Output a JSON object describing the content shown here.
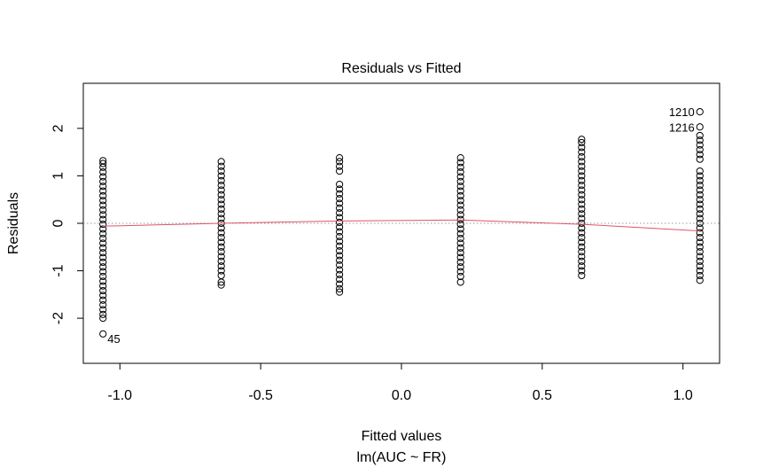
{
  "chart_data": {
    "type": "scatter",
    "title": "Residuals vs Fitted",
    "xlabel": "Fitted values",
    "subtitle": "lm(AUC ~ FR)",
    "ylabel": "Residuals",
    "xlim": [
      -1.13,
      1.13
    ],
    "ylim": [
      -2.95,
      2.95
    ],
    "x_ticks": [
      -1.0,
      -0.5,
      0.0,
      0.5,
      1.0
    ],
    "x_tick_labels": [
      "-1.0",
      "-0.5",
      "0.0",
      "0.5",
      "1.0"
    ],
    "y_ticks": [
      -2,
      -1,
      0,
      1,
      2
    ],
    "y_tick_labels": [
      "-2",
      "-1",
      "0",
      "1",
      "2"
    ],
    "grid": false,
    "reference_line": {
      "y": 0,
      "style": "dotted",
      "color": "#999999"
    },
    "colors": {
      "points": "#000000",
      "smooth": "#DF536B",
      "reference": "#999999"
    },
    "clusters": [
      {
        "x": -1.06,
        "y": [
          -2.33,
          -2.0,
          -1.92,
          -1.82,
          -1.72,
          -1.62,
          -1.52,
          -1.42,
          -1.32,
          -1.22,
          -1.12,
          -1.02,
          -0.92,
          -0.82,
          -0.72,
          -0.62,
          -0.52,
          -0.42,
          -0.32,
          -0.22,
          -0.12,
          -0.02,
          0.08,
          0.18,
          0.28,
          0.38,
          0.48,
          0.58,
          0.68,
          0.78,
          0.88,
          0.98,
          1.08,
          1.18,
          1.26,
          1.32
        ]
      },
      {
        "x": -0.64,
        "y": [
          -1.3,
          -1.24,
          -1.1,
          -1.0,
          -0.9,
          -0.8,
          -0.7,
          -0.6,
          -0.5,
          -0.4,
          -0.3,
          -0.2,
          -0.1,
          0.0,
          0.1,
          0.2,
          0.3,
          0.4,
          0.5,
          0.6,
          0.7,
          0.8,
          0.9,
          1.0,
          1.1,
          1.2,
          1.3
        ]
      },
      {
        "x": -0.22,
        "y": [
          -1.45,
          -1.38,
          -1.28,
          -1.18,
          -1.08,
          -0.98,
          -0.88,
          -0.78,
          -0.68,
          -0.58,
          -0.48,
          -0.38,
          -0.28,
          -0.18,
          -0.08,
          0.02,
          0.12,
          0.22,
          0.32,
          0.42,
          0.52,
          0.62,
          0.72,
          0.82,
          1.1,
          1.2,
          1.3,
          1.38
        ]
      },
      {
        "x": 0.21,
        "y": [
          -1.24,
          -1.12,
          -1.02,
          -0.92,
          -0.82,
          -0.72,
          -0.62,
          -0.52,
          -0.42,
          -0.32,
          -0.22,
          -0.12,
          -0.02,
          0.08,
          0.18,
          0.28,
          0.38,
          0.48,
          0.58,
          0.68,
          0.78,
          0.88,
          0.98,
          1.08,
          1.18,
          1.28,
          1.38
        ]
      },
      {
        "x": 0.64,
        "y": [
          -1.1,
          -1.0,
          -0.9,
          -0.8,
          -0.7,
          -0.6,
          -0.5,
          -0.4,
          -0.3,
          -0.2,
          -0.1,
          0.0,
          0.1,
          0.2,
          0.3,
          0.4,
          0.5,
          0.6,
          0.7,
          0.8,
          0.9,
          1.0,
          1.1,
          1.2,
          1.3,
          1.4,
          1.5,
          1.6,
          1.7,
          1.77
        ]
      },
      {
        "x": 1.06,
        "y": [
          -1.2,
          -1.1,
          -1.0,
          -0.9,
          -0.8,
          -0.7,
          -0.6,
          -0.5,
          -0.4,
          -0.3,
          -0.2,
          -0.1,
          0.0,
          0.1,
          0.2,
          0.3,
          0.4,
          0.5,
          0.6,
          0.7,
          0.8,
          0.9,
          1.0,
          1.1,
          1.35,
          1.45,
          1.55,
          1.65,
          1.75,
          1.85,
          2.03,
          2.35
        ]
      }
    ],
    "smooth_line": {
      "x": [
        -1.06,
        -0.64,
        -0.22,
        0.21,
        0.64,
        1.06
      ],
      "y": [
        -0.06,
        0.0,
        0.05,
        0.07,
        -0.02,
        -0.16
      ]
    },
    "point_labels": [
      {
        "label": "45",
        "x": -1.06,
        "y": -2.33,
        "side": "right"
      },
      {
        "label": "1210",
        "x": 1.06,
        "y": 2.35,
        "side": "left"
      },
      {
        "label": "1216",
        "x": 1.06,
        "y": 2.03,
        "side": "left"
      }
    ]
  }
}
